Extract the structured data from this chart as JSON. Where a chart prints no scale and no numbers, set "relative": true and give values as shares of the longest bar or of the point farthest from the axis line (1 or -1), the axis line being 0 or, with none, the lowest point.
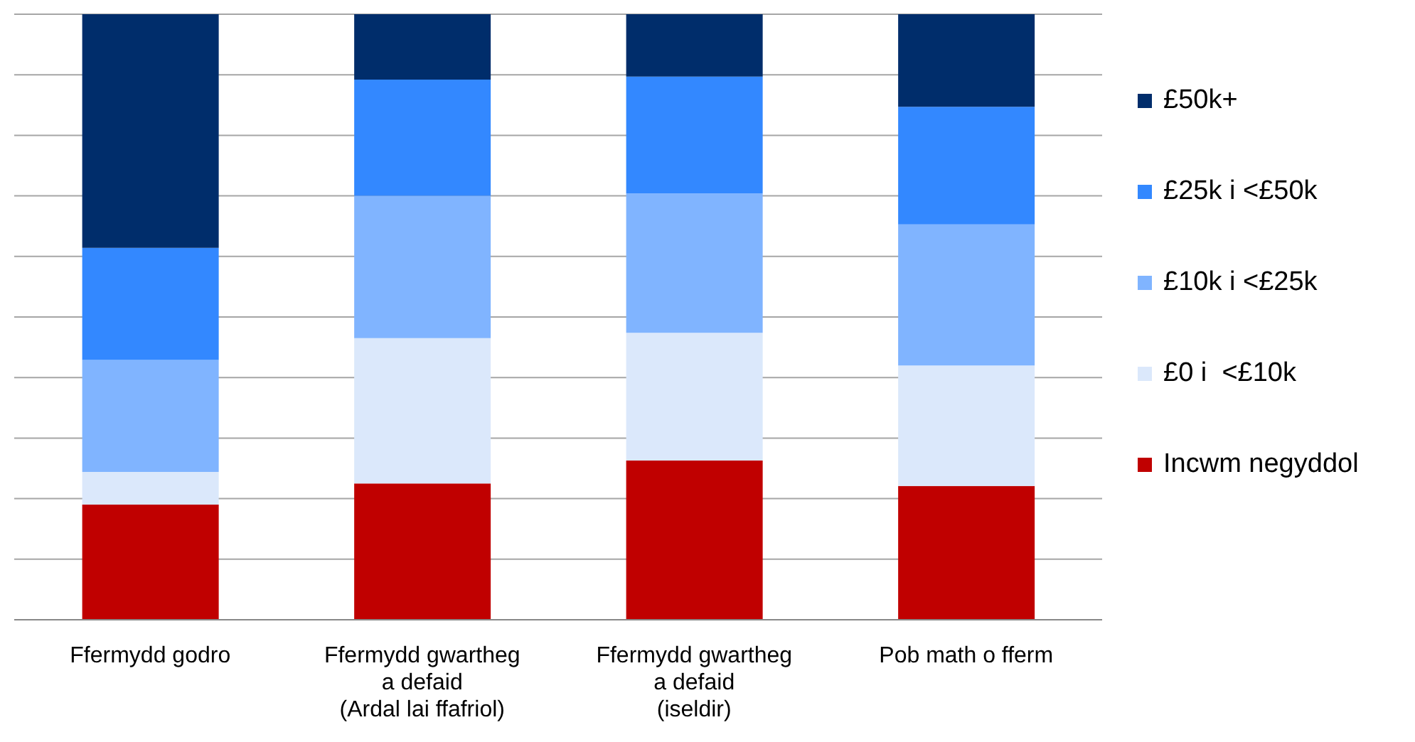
{
  "chart_data": {
    "type": "bar",
    "stacked": true,
    "relative": true,
    "grid": "y",
    "legend": "right",
    "categories": [
      "Ffermydd godro",
      "Ffermydd gwartheg\na defaid\n(Ardal lai ffafriol)",
      "Ffermydd gwartheg\na defaid\n(iseldir)",
      "Pob math o fferm"
    ],
    "series": [
      {
        "name": "Incwm negyddol",
        "color": "#c00000",
        "values": [
          0.19,
          0.225,
          0.263,
          0.221
        ]
      },
      {
        "name": "£0 i  <£10k",
        "color": "#dbe8fb",
        "values": [
          0.054,
          0.24,
          0.211,
          0.199
        ]
      },
      {
        "name": "£10k i <£25k",
        "color": "#80b4ff",
        "values": [
          0.185,
          0.235,
          0.23,
          0.233
        ]
      },
      {
        "name": "£25k i <£50k",
        "color": "#3388ff",
        "values": [
          0.185,
          0.192,
          0.193,
          0.194
        ]
      },
      {
        "name": "£50k+",
        "color": "#002d6b",
        "values": [
          0.386,
          0.108,
          0.103,
          0.153
        ]
      }
    ]
  }
}
